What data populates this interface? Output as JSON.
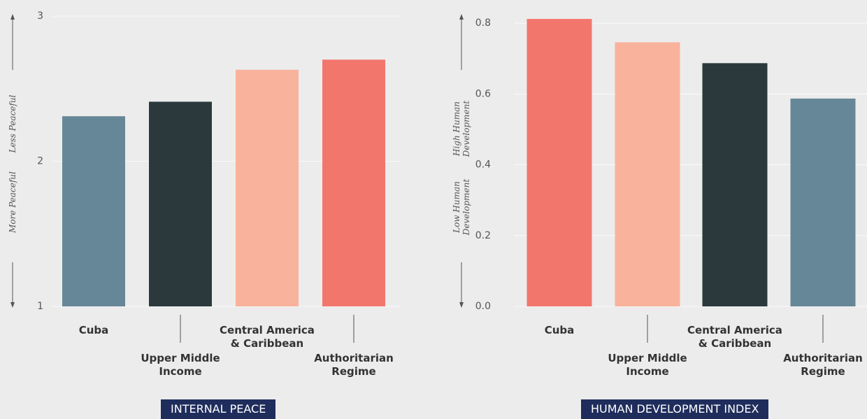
{
  "chart_data": [
    {
      "type": "bar",
      "title": "INTERNAL PEACE",
      "axis_labels": [
        "Less Peaceful",
        "More Peaceful"
      ],
      "categories": [
        "Cuba",
        "Upper Middle Income",
        "Central America & Caribbean",
        "Authoritarian Regime"
      ],
      "values": [
        2.31,
        2.41,
        2.63,
        2.7
      ],
      "colors": [
        "#668797",
        "#2b393c",
        "#f9b29b",
        "#f3766d"
      ],
      "ylim": [
        1,
        3
      ],
      "yticks": [
        1,
        2,
        3
      ],
      "grid": true
    },
    {
      "type": "bar",
      "title": "HUMAN DEVELOPMENT INDEX",
      "axis_labels": [
        "High Human Development",
        "Low Human Development"
      ],
      "categories": [
        "Cuba",
        "Upper Middle Income",
        "Central America & Caribbean",
        "Authoritarian Regime"
      ],
      "values": [
        0.812,
        0.746,
        0.687,
        0.587
      ],
      "colors": [
        "#f3766d",
        "#f9b29b",
        "#2b393c",
        "#668797"
      ],
      "ylim": [
        0,
        0.82
      ],
      "yticks": [
        {
          "value": 0,
          "label": "0.0"
        },
        0.2,
        0.4,
        0.6,
        0.8
      ],
      "grid": true
    }
  ]
}
